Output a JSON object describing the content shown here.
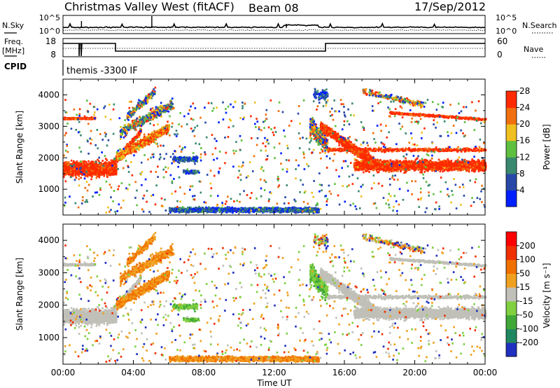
{
  "header": {
    "title": "Christmas Valley West (fitACF)",
    "beam": "Beam 08",
    "date": "17/Sep/2012"
  },
  "status_panel": {
    "nsky_label": "N.Sky",
    "nsky_ticks": [
      "10^5",
      "10^0"
    ],
    "nsearch_label": "N.Search",
    "nsearch_ticks": [
      "10^5",
      "10^0"
    ],
    "freq_label_1": "Freq.",
    "freq_label_2": "[MHz]",
    "freq_ticks": [
      "18",
      "8"
    ],
    "nave_label": "Nave",
    "nave_ticks": [
      "60",
      "0"
    ],
    "cpid_label": "CPID",
    "cpid_text": "themis -3300 IF"
  },
  "chart_data": [
    {
      "type": "heatmap",
      "title": "",
      "xlabel": "",
      "ylabel": "Slant Range [km]",
      "xlim": [
        "00:00",
        "24:00"
      ],
      "ylim": [
        180,
        4500
      ],
      "y_ticks": [
        "1000",
        "2000",
        "3000",
        "4000"
      ],
      "grid": false,
      "colorbar": {
        "label": "Power [dB]",
        "ticks": [
          "4",
          "8",
          "12",
          "16",
          "20",
          "24",
          "28"
        ],
        "colors": [
          "#0020ff",
          "#2848a8",
          "#3a8870",
          "#5fc040",
          "#f0c020",
          "#f07010",
          "#ff2a00"
        ]
      }
    },
    {
      "type": "heatmap",
      "title": "",
      "xlabel": "Time UT",
      "ylabel": "Slant Range [km]",
      "xlim": [
        "00:00",
        "24:00"
      ],
      "ylim": [
        180,
        4500
      ],
      "x_ticks": [
        "00:00",
        "04:00",
        "08:00",
        "12:00",
        "16:00",
        "20:00",
        "00:00"
      ],
      "y_ticks": [
        "1000",
        "2000",
        "3000",
        "4000"
      ],
      "grid": false,
      "colorbar": {
        "label": "Velocity [m s⁻¹]",
        "ticks": [
          "200",
          "100",
          "50",
          "15",
          "-15",
          "-50",
          "-100",
          "-200"
        ],
        "colors": [
          "#2030c0",
          "#208860",
          "#40a838",
          "#80d040",
          "#c0c0b8",
          "#f0a020",
          "#f07000",
          "#f03000",
          "#ff0000"
        ]
      }
    }
  ]
}
